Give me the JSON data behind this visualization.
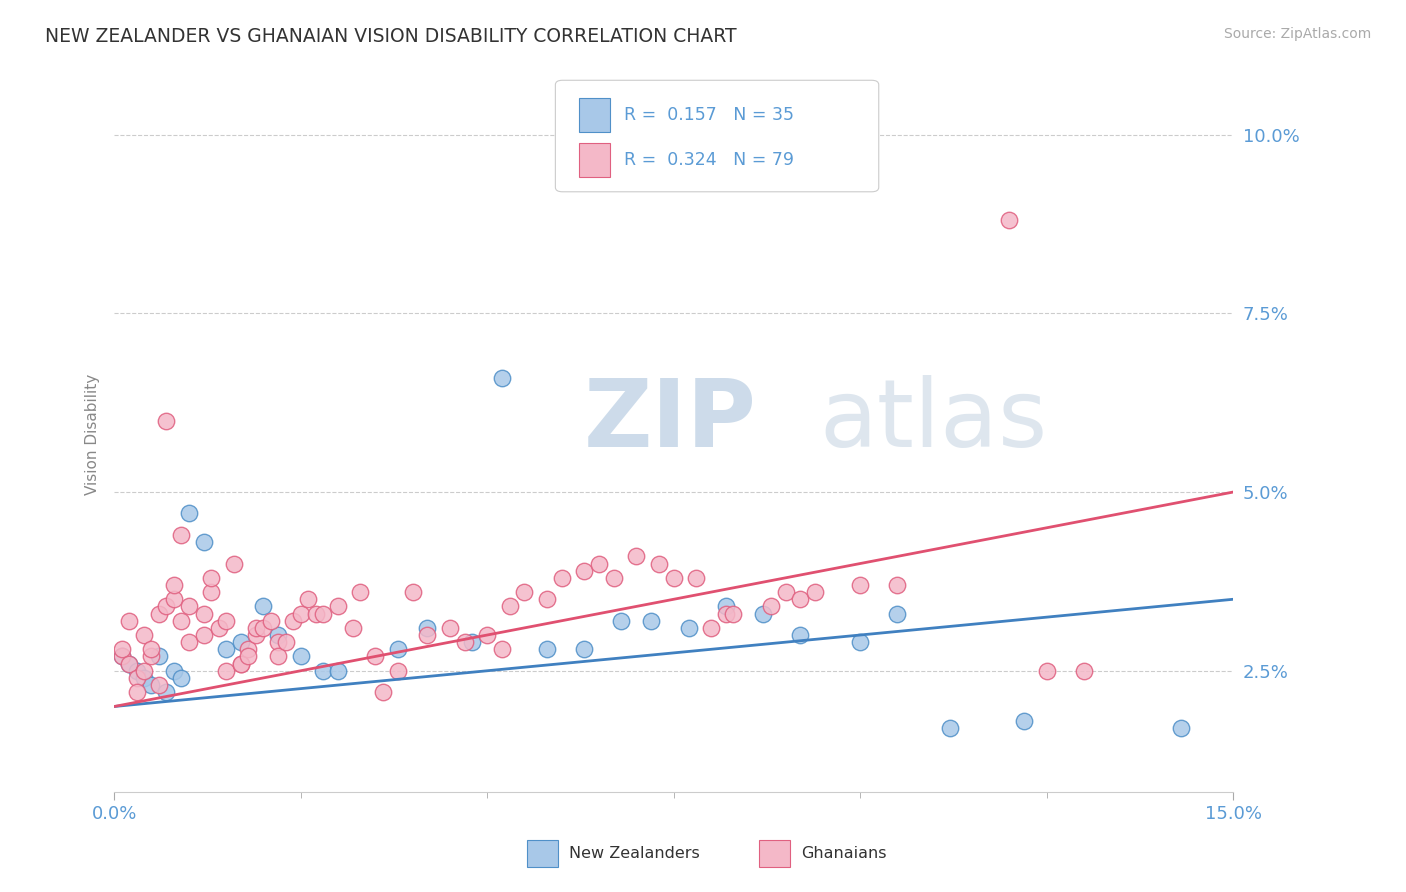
{
  "title": "NEW ZEALANDER VS GHANAIAN VISION DISABILITY CORRELATION CHART",
  "source_text": "Source: ZipAtlas.com",
  "ylabel": "Vision Disability",
  "xlim": [
    0.0,
    0.15
  ],
  "ylim": [
    0.008,
    0.108
  ],
  "ytick_positions": [
    0.025,
    0.05,
    0.075,
    0.1
  ],
  "ytick_labels": [
    "2.5%",
    "5.0%",
    "7.5%",
    "10.0%"
  ],
  "nz_color": "#a8c8e8",
  "gh_color": "#f4b8c8",
  "nz_edge_color": "#5090c8",
  "gh_edge_color": "#e06080",
  "nz_line_color": "#4080c0",
  "gh_line_color": "#e05070",
  "nz_R": 0.157,
  "nz_N": 35,
  "gh_R": 0.324,
  "gh_N": 79,
  "background_color": "#ffffff",
  "grid_color": "#cccccc",
  "title_color": "#333333",
  "axis_label_color": "#5b9bd5",
  "watermark_zip": "ZIP",
  "watermark_atlas": "atlas",
  "legend_label_nz": "New Zealanders",
  "legend_label_gh": "Ghanaians",
  "nz_points": [
    [
      0.001,
      0.027
    ],
    [
      0.002,
      0.026
    ],
    [
      0.003,
      0.025
    ],
    [
      0.004,
      0.024
    ],
    [
      0.005,
      0.023
    ],
    [
      0.006,
      0.027
    ],
    [
      0.007,
      0.022
    ],
    [
      0.008,
      0.025
    ],
    [
      0.009,
      0.024
    ],
    [
      0.01,
      0.047
    ],
    [
      0.012,
      0.043
    ],
    [
      0.015,
      0.028
    ],
    [
      0.017,
      0.029
    ],
    [
      0.02,
      0.034
    ],
    [
      0.022,
      0.03
    ],
    [
      0.025,
      0.027
    ],
    [
      0.028,
      0.025
    ],
    [
      0.03,
      0.025
    ],
    [
      0.038,
      0.028
    ],
    [
      0.042,
      0.031
    ],
    [
      0.048,
      0.029
    ],
    [
      0.052,
      0.066
    ],
    [
      0.058,
      0.028
    ],
    [
      0.063,
      0.028
    ],
    [
      0.068,
      0.032
    ],
    [
      0.072,
      0.032
    ],
    [
      0.077,
      0.031
    ],
    [
      0.082,
      0.034
    ],
    [
      0.087,
      0.033
    ],
    [
      0.092,
      0.03
    ],
    [
      0.1,
      0.029
    ],
    [
      0.105,
      0.033
    ],
    [
      0.112,
      0.017
    ],
    [
      0.122,
      0.018
    ],
    [
      0.143,
      0.017
    ]
  ],
  "gh_points": [
    [
      0.001,
      0.027
    ],
    [
      0.001,
      0.028
    ],
    [
      0.002,
      0.026
    ],
    [
      0.002,
      0.032
    ],
    [
      0.003,
      0.024
    ],
    [
      0.003,
      0.022
    ],
    [
      0.004,
      0.03
    ],
    [
      0.004,
      0.025
    ],
    [
      0.005,
      0.027
    ],
    [
      0.005,
      0.028
    ],
    [
      0.006,
      0.023
    ],
    [
      0.006,
      0.033
    ],
    [
      0.007,
      0.034
    ],
    [
      0.007,
      0.06
    ],
    [
      0.008,
      0.035
    ],
    [
      0.008,
      0.037
    ],
    [
      0.009,
      0.044
    ],
    [
      0.009,
      0.032
    ],
    [
      0.01,
      0.029
    ],
    [
      0.01,
      0.034
    ],
    [
      0.012,
      0.033
    ],
    [
      0.012,
      0.03
    ],
    [
      0.013,
      0.036
    ],
    [
      0.013,
      0.038
    ],
    [
      0.014,
      0.031
    ],
    [
      0.015,
      0.032
    ],
    [
      0.015,
      0.025
    ],
    [
      0.016,
      0.04
    ],
    [
      0.017,
      0.026
    ],
    [
      0.017,
      0.026
    ],
    [
      0.018,
      0.028
    ],
    [
      0.018,
      0.027
    ],
    [
      0.019,
      0.03
    ],
    [
      0.019,
      0.031
    ],
    [
      0.02,
      0.031
    ],
    [
      0.021,
      0.032
    ],
    [
      0.022,
      0.029
    ],
    [
      0.022,
      0.027
    ],
    [
      0.023,
      0.029
    ],
    [
      0.024,
      0.032
    ],
    [
      0.025,
      0.033
    ],
    [
      0.026,
      0.035
    ],
    [
      0.027,
      0.033
    ],
    [
      0.028,
      0.033
    ],
    [
      0.03,
      0.034
    ],
    [
      0.032,
      0.031
    ],
    [
      0.033,
      0.036
    ],
    [
      0.035,
      0.027
    ],
    [
      0.036,
      0.022
    ],
    [
      0.038,
      0.025
    ],
    [
      0.04,
      0.036
    ],
    [
      0.042,
      0.03
    ],
    [
      0.045,
      0.031
    ],
    [
      0.047,
      0.029
    ],
    [
      0.05,
      0.03
    ],
    [
      0.052,
      0.028
    ],
    [
      0.053,
      0.034
    ],
    [
      0.055,
      0.036
    ],
    [
      0.058,
      0.035
    ],
    [
      0.06,
      0.038
    ],
    [
      0.063,
      0.039
    ],
    [
      0.065,
      0.04
    ],
    [
      0.067,
      0.038
    ],
    [
      0.07,
      0.041
    ],
    [
      0.073,
      0.04
    ],
    [
      0.075,
      0.038
    ],
    [
      0.078,
      0.038
    ],
    [
      0.08,
      0.031
    ],
    [
      0.082,
      0.033
    ],
    [
      0.083,
      0.033
    ],
    [
      0.088,
      0.034
    ],
    [
      0.09,
      0.036
    ],
    [
      0.092,
      0.035
    ],
    [
      0.094,
      0.036
    ],
    [
      0.1,
      0.037
    ],
    [
      0.105,
      0.037
    ],
    [
      0.12,
      0.088
    ],
    [
      0.125,
      0.025
    ],
    [
      0.13,
      0.025
    ]
  ]
}
